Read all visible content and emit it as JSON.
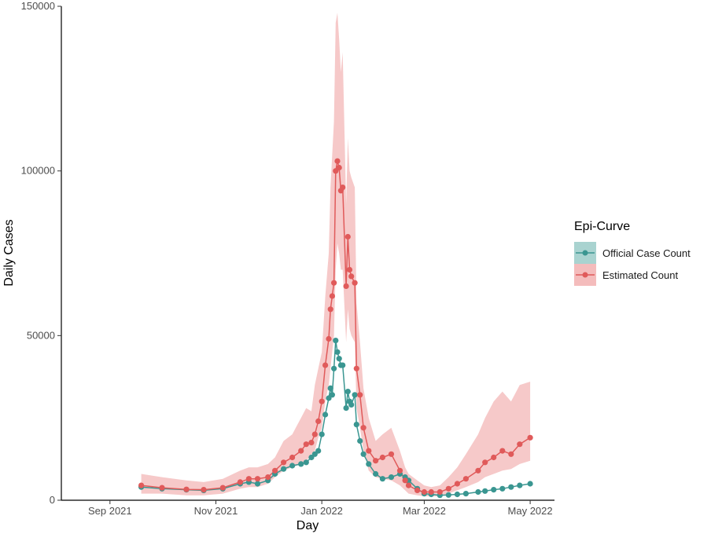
{
  "chart_data": {
    "type": "line",
    "xlabel": "Day",
    "ylabel": "Daily Cases",
    "x_range": [
      "2021-08-04",
      "2022-05-15"
    ],
    "ylim": [
      0,
      150000
    ],
    "yticks": [
      0,
      50000,
      100000,
      150000
    ],
    "xticks": [
      {
        "date": "2021-09-01",
        "label": "Sep 2021"
      },
      {
        "date": "2021-11-01",
        "label": "Nov 2021"
      },
      {
        "date": "2022-01-01",
        "label": "Jan 2022"
      },
      {
        "date": "2022-03-01",
        "label": "Mar 2022"
      },
      {
        "date": "2022-05-01",
        "label": "May 2022"
      }
    ],
    "grid": false,
    "legend": {
      "title": "Epi-Curve",
      "position": "right",
      "entries": [
        "Official Case Count",
        "Estimated Count"
      ]
    },
    "series": [
      {
        "name": "Official Case Count",
        "color": "#3a9691",
        "band_color": "#a9d3d0",
        "dates": [
          "2021-09-19",
          "2021-10-01",
          "2021-10-15",
          "2021-10-25",
          "2021-11-05",
          "2021-11-15",
          "2021-11-20",
          "2021-11-25",
          "2021-12-01",
          "2021-12-05",
          "2021-12-10",
          "2021-12-15",
          "2021-12-20",
          "2021-12-23",
          "2021-12-26",
          "2021-12-28",
          "2021-12-30",
          "2022-01-01",
          "2022-01-03",
          "2022-01-05",
          "2022-01-06",
          "2022-01-07",
          "2022-01-08",
          "2022-01-09",
          "2022-01-10",
          "2022-01-11",
          "2022-01-12",
          "2022-01-13",
          "2022-01-15",
          "2022-01-16",
          "2022-01-17",
          "2022-01-18",
          "2022-01-20",
          "2022-01-21",
          "2022-01-23",
          "2022-01-25",
          "2022-01-28",
          "2022-02-01",
          "2022-02-05",
          "2022-02-10",
          "2022-02-15",
          "2022-02-18",
          "2022-02-20",
          "2022-02-25",
          "2022-03-01",
          "2022-03-05",
          "2022-03-10",
          "2022-03-15",
          "2022-03-20",
          "2022-03-25",
          "2022-04-01",
          "2022-04-05",
          "2022-04-10",
          "2022-04-15",
          "2022-04-20",
          "2022-04-25",
          "2022-05-01"
        ],
        "values": [
          4000,
          3500,
          3200,
          3000,
          3500,
          5000,
          5500,
          5000,
          6000,
          8000,
          9500,
          10500,
          11000,
          11500,
          13000,
          14000,
          15000,
          20000,
          26000,
          31000,
          34000,
          32000,
          40000,
          48500,
          45000,
          43000,
          41000,
          41000,
          28000,
          33000,
          30000,
          29000,
          32000,
          23000,
          18000,
          14000,
          11000,
          8000,
          6500,
          7000,
          8000,
          7000,
          6000,
          3500,
          2000,
          1800,
          1500,
          1600,
          1800,
          2000,
          2500,
          2800,
          3200,
          3500,
          4000,
          4500,
          5000
        ]
      },
      {
        "name": "Estimated Count",
        "color": "#e05a5a",
        "band_color": "#f4bcbc",
        "dates": [
          "2021-09-19",
          "2021-10-01",
          "2021-10-15",
          "2021-10-25",
          "2021-11-05",
          "2021-11-15",
          "2021-11-20",
          "2021-11-25",
          "2021-12-01",
          "2021-12-05",
          "2021-12-10",
          "2021-12-15",
          "2021-12-20",
          "2021-12-23",
          "2021-12-26",
          "2021-12-28",
          "2021-12-30",
          "2022-01-01",
          "2022-01-03",
          "2022-01-05",
          "2022-01-06",
          "2022-01-07",
          "2022-01-08",
          "2022-01-09",
          "2022-01-10",
          "2022-01-11",
          "2022-01-12",
          "2022-01-13",
          "2022-01-15",
          "2022-01-16",
          "2022-01-17",
          "2022-01-18",
          "2022-01-20",
          "2022-01-21",
          "2022-01-23",
          "2022-01-25",
          "2022-01-28",
          "2022-02-01",
          "2022-02-05",
          "2022-02-10",
          "2022-02-15",
          "2022-02-18",
          "2022-02-20",
          "2022-02-25",
          "2022-03-01",
          "2022-03-05",
          "2022-03-10",
          "2022-03-15",
          "2022-03-20",
          "2022-03-25",
          "2022-04-01",
          "2022-04-05",
          "2022-04-10",
          "2022-04-15",
          "2022-04-20",
          "2022-04-25",
          "2022-05-01"
        ],
        "values": [
          4500,
          3800,
          3300,
          3200,
          3800,
          5500,
          6500,
          6500,
          7000,
          9000,
          11500,
          13000,
          15000,
          17000,
          17500,
          20000,
          24000,
          30000,
          41000,
          49000,
          58000,
          62000,
          66000,
          100000,
          103000,
          101000,
          94000,
          95000,
          65000,
          80000,
          70000,
          68000,
          66000,
          40000,
          32000,
          22000,
          15000,
          12000,
          13000,
          14000,
          9000,
          6000,
          4500,
          3000,
          2500,
          2500,
          2500,
          3500,
          5000,
          6500,
          9000,
          11500,
          13000,
          15000,
          14000,
          17000,
          19000
        ],
        "lower": [
          2000,
          2000,
          1500,
          1500,
          2000,
          3500,
          4000,
          4000,
          5000,
          7000,
          9000,
          10000,
          11000,
          12000,
          14000,
          15000,
          19000,
          22000,
          30000,
          35000,
          40000,
          45000,
          50000,
          70000,
          78000,
          75000,
          70000,
          70000,
          48000,
          58000,
          52000,
          50000,
          48000,
          28000,
          22000,
          15000,
          9000,
          7000,
          6500,
          6000,
          4500,
          3000,
          2000,
          1500,
          1200,
          1200,
          1200,
          2000,
          3000,
          4000,
          5500,
          7000,
          8000,
          9000,
          9500,
          11000,
          12000
        ],
        "upper": [
          8000,
          7000,
          6000,
          5500,
          6500,
          9000,
          10000,
          10000,
          11000,
          13000,
          18000,
          20000,
          25000,
          28000,
          27000,
          35000,
          40000,
          45000,
          62000,
          75000,
          95000,
          105000,
          115000,
          145000,
          148000,
          140000,
          130000,
          136000,
          90000,
          110000,
          100000,
          98000,
          95000,
          60000,
          48000,
          34000,
          25000,
          18000,
          20000,
          22000,
          15000,
          10000,
          8000,
          6000,
          4500,
          4000,
          4500,
          7000,
          10000,
          14000,
          20000,
          25000,
          30000,
          33000,
          30000,
          35000,
          36000
        ]
      }
    ]
  }
}
